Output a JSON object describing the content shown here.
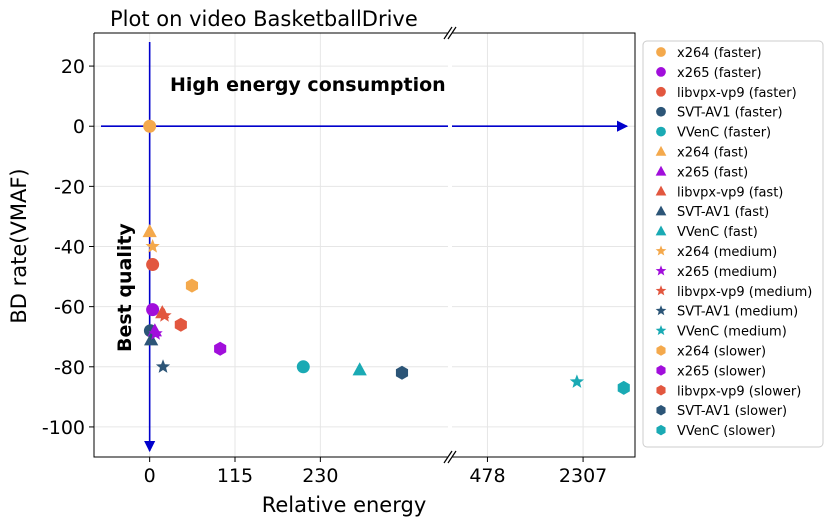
{
  "chart_data": {
    "type": "scatter",
    "title": "Plot on video BasketballDrive",
    "xlabel": "Relative energy",
    "ylabel": "BD rate(VMAF)",
    "x_axis_broken": true,
    "left_panel": {
      "xlim": [
        -75,
        402
      ],
      "xticks": [
        0,
        115,
        230
      ],
      "xtick_labels": [
        "0",
        "115",
        "230"
      ]
    },
    "right_panel": {
      "xlim": [
        -200,
        3300
      ],
      "xticks": [
        478,
        2307
      ],
      "xtick_labels": [
        "478",
        "2307"
      ]
    },
    "ylim": [
      -110,
      31
    ],
    "yticks": [
      20,
      0,
      -20,
      -40,
      -60,
      -80,
      -100
    ],
    "ytick_labels": [
      "20",
      "0",
      "-20",
      "-40",
      "-60",
      "-80",
      "-100"
    ],
    "grid": true,
    "legend_position": "outside-right",
    "annotations": {
      "high_energy": "High energy consumption",
      "best_quality": "Best quality"
    },
    "series": [
      {
        "name": "x264 (faster)",
        "codec": "x264",
        "preset": "faster",
        "marker": "circle",
        "color": "#F4A94C",
        "points": [
          [
            0,
            0
          ]
        ]
      },
      {
        "name": "x265 (faster)",
        "codec": "x265",
        "preset": "faster",
        "marker": "circle",
        "color": "#A10EDB",
        "points": [
          [
            4,
            -61
          ]
        ]
      },
      {
        "name": "libvpx-vp9 (faster)",
        "codec": "libvpx-vp9",
        "preset": "faster",
        "marker": "circle",
        "color": "#E2573F",
        "points": [
          [
            4,
            -46
          ]
        ]
      },
      {
        "name": "SVT-AV1 (faster)",
        "codec": "SVT-AV1",
        "preset": "faster",
        "marker": "circle",
        "color": "#2C5577",
        "points": [
          [
            1,
            -68
          ]
        ]
      },
      {
        "name": "VVenC (faster)",
        "codec": "VVenC",
        "preset": "faster",
        "marker": "circle",
        "color": "#1AAAB4",
        "points": [
          [
            207,
            -80
          ]
        ]
      },
      {
        "name": "x264 (fast)",
        "codec": "x264",
        "preset": "fast",
        "marker": "triangle",
        "color": "#F4A94C",
        "points": [
          [
            0,
            -35
          ]
        ]
      },
      {
        "name": "x265 (fast)",
        "codec": "x265",
        "preset": "fast",
        "marker": "triangle",
        "color": "#A10EDB",
        "points": [
          [
            7,
            -68
          ]
        ]
      },
      {
        "name": "libvpx-vp9 (fast)",
        "codec": "libvpx-vp9",
        "preset": "fast",
        "marker": "triangle",
        "color": "#E2573F",
        "points": [
          [
            17,
            -62
          ]
        ]
      },
      {
        "name": "SVT-AV1 (fast)",
        "codec": "SVT-AV1",
        "preset": "fast",
        "marker": "triangle",
        "color": "#2C5577",
        "points": [
          [
            2,
            -71
          ]
        ]
      },
      {
        "name": "VVenC (fast)",
        "codec": "VVenC",
        "preset": "fast",
        "marker": "triangle",
        "color": "#1AAAB4",
        "points": [
          [
            283,
            -81
          ]
        ]
      },
      {
        "name": "x264 (medium)",
        "codec": "x264",
        "preset": "medium",
        "marker": "star",
        "color": "#F4A94C",
        "points": [
          [
            4,
            -40
          ]
        ]
      },
      {
        "name": "x265 (medium)",
        "codec": "x265",
        "preset": "medium",
        "marker": "star",
        "color": "#A10EDB",
        "points": [
          [
            8,
            -69
          ]
        ]
      },
      {
        "name": "libvpx-vp9 (medium)",
        "codec": "libvpx-vp9",
        "preset": "medium",
        "marker": "star",
        "color": "#E2573F",
        "points": [
          [
            20,
            -63
          ]
        ]
      },
      {
        "name": "SVT-AV1 (medium)",
        "codec": "SVT-AV1",
        "preset": "medium",
        "marker": "star",
        "color": "#2C5577",
        "points": [
          [
            18,
            -80
          ]
        ]
      },
      {
        "name": "VVenC (medium)",
        "codec": "VVenC",
        "preset": "medium",
        "marker": "star",
        "color": "#1AAAB4",
        "points": [
          [
            2189,
            -85
          ]
        ]
      },
      {
        "name": "x264 (slower)",
        "codec": "x264",
        "preset": "slower",
        "marker": "hexagon",
        "color": "#F4A94C",
        "points": [
          [
            57,
            -53
          ]
        ]
      },
      {
        "name": "x265 (slower)",
        "codec": "x265",
        "preset": "slower",
        "marker": "hexagon",
        "color": "#A10EDB",
        "points": [
          [
            95,
            -74
          ]
        ]
      },
      {
        "name": "libvpx-vp9 (slower)",
        "codec": "libvpx-vp9",
        "preset": "slower",
        "marker": "hexagon",
        "color": "#E2573F",
        "points": [
          [
            42,
            -66
          ]
        ]
      },
      {
        "name": "SVT-AV1 (slower)",
        "codec": "SVT-AV1",
        "preset": "slower",
        "marker": "hexagon",
        "color": "#2C5577",
        "points": [
          [
            340,
            -82
          ]
        ]
      },
      {
        "name": "VVenC (slower)",
        "codec": "VVenC",
        "preset": "slower",
        "marker": "hexagon",
        "color": "#1AAAB4",
        "points": [
          [
            3085,
            -87
          ]
        ]
      }
    ]
  }
}
